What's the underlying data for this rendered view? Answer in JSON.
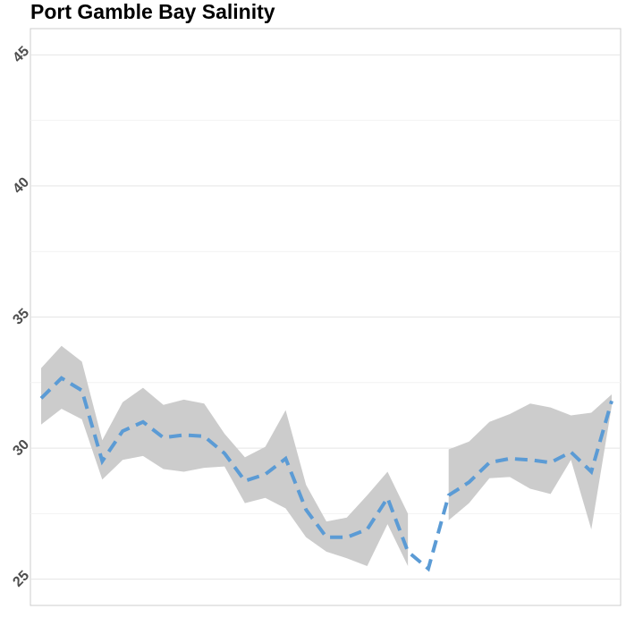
{
  "chart_data": {
    "type": "line",
    "title": "Port Gamble Bay Salinity",
    "categories": [
      null,
      null,
      null,
      null,
      null,
      null,
      null,
      null,
      null,
      null,
      null,
      null,
      null,
      null,
      null,
      null,
      null,
      null,
      null,
      null,
      null,
      null,
      null,
      null,
      null,
      null,
      null,
      null,
      null
    ],
    "series": [
      {
        "color": "#5b9bd5",
        "values": [
          31.9,
          32.67,
          32.2,
          29.5,
          30.65,
          31.0,
          30.4,
          30.5,
          30.45,
          29.8,
          28.75,
          29.0,
          29.6,
          27.65,
          26.6,
          26.6,
          26.9,
          28.1,
          26.05,
          25.4,
          28.2,
          28.7,
          29.45,
          29.6,
          29.55,
          29.45,
          29.85,
          29.1,
          31.8
        ]
      }
    ],
    "band": {
      "color": "#cccccc",
      "upper": [
        33.05,
        33.9,
        33.3,
        30.3,
        31.75,
        32.3,
        31.65,
        31.85,
        31.7,
        30.55,
        29.65,
        30.05,
        31.45,
        28.6,
        27.2,
        27.35,
        28.2,
        29.1,
        27.5,
        null,
        29.95,
        30.25,
        31.0,
        31.3,
        31.7,
        31.55,
        31.25,
        31.35,
        32.05
      ],
      "lower": [
        30.9,
        31.5,
        31.1,
        28.8,
        29.55,
        29.7,
        29.2,
        29.1,
        29.25,
        29.3,
        27.9,
        28.1,
        27.7,
        26.6,
        26.05,
        25.8,
        25.5,
        27.1,
        25.5,
        null,
        27.25,
        27.9,
        28.85,
        28.9,
        28.45,
        28.25,
        29.55,
        26.9,
        31.6
      ]
    },
    "ylim": [
      24,
      46
    ],
    "yticks": [
      25,
      30,
      35,
      40,
      45
    ],
    "minor_yticks": [
      27.5,
      32.5,
      37.5,
      42.5
    ],
    "grid": true
  }
}
